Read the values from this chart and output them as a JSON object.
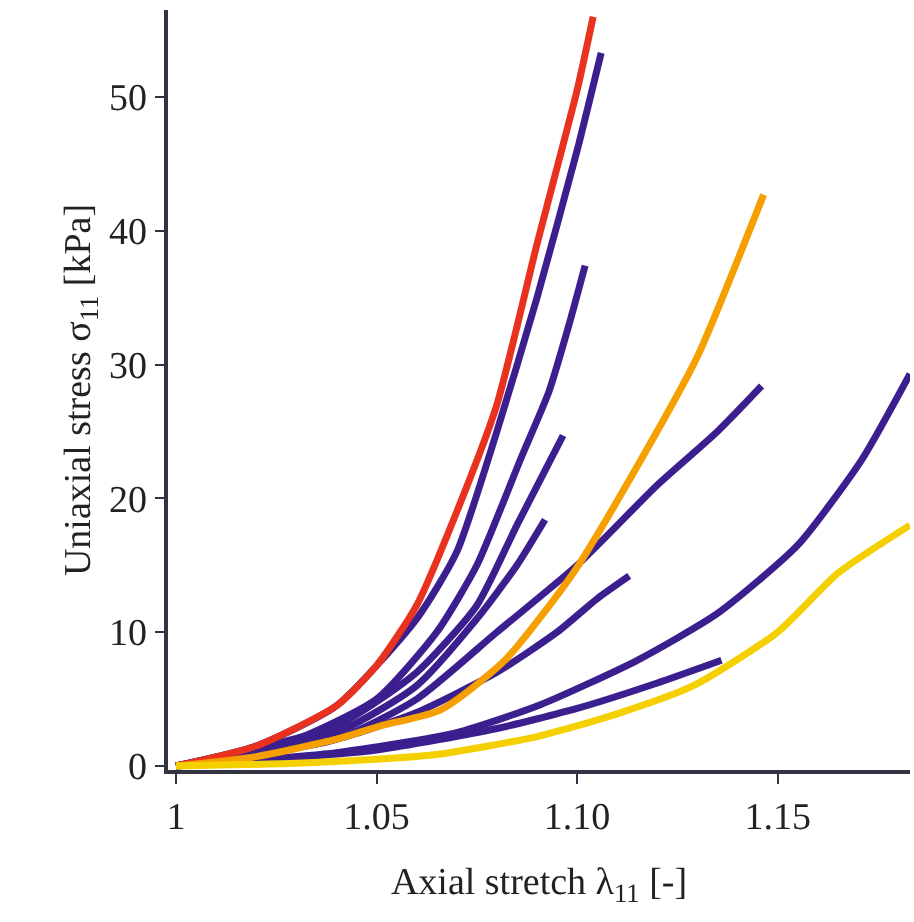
{
  "chart_data": {
    "type": "line",
    "xlabel": "Axial stretch λ$_{11}$ [-]",
    "ylabel": "Uniaxial stress σ$_{11}$ [kPa]",
    "xlim": [
      0.998,
      1.183
    ],
    "ylim": [
      -0.3,
      56.5
    ],
    "xticks": [
      1,
      1.05,
      {
        "value": 1.1,
        "label": "1.10"
      },
      1.15
    ],
    "yticks": [
      0,
      10,
      20,
      30,
      40,
      50
    ],
    "marker": "none",
    "line_style": "solid",
    "series": [
      {
        "color": "#3b1f8f",
        "x": [
          1.0,
          1.02,
          1.04,
          1.06,
          1.07,
          1.08,
          1.09,
          1.1,
          1.106
        ],
        "values": [
          0,
          1.5,
          4.5,
          11,
          16,
          25,
          35,
          46,
          53.3
        ]
      },
      {
        "color": "#3b1f8f",
        "x": [
          1.0,
          1.03,
          1.05,
          1.065,
          1.075,
          1.086,
          1.093,
          1.098,
          1.102
        ],
        "values": [
          0,
          2,
          5,
          10,
          15,
          23,
          28,
          33,
          37.4
        ]
      },
      {
        "color": "#3b1f8f",
        "x": [
          1.0,
          1.04,
          1.06,
          1.075,
          1.085,
          1.0965
        ],
        "values": [
          0,
          3,
          7,
          12,
          18,
          24.7
        ]
      },
      {
        "color": "#3b1f8f",
        "x": [
          1.0,
          1.04,
          1.06,
          1.08,
          1.1,
          1.12,
          1.135,
          1.146
        ],
        "values": [
          0,
          2,
          5,
          10,
          15,
          21,
          25,
          28.4
        ]
      },
      {
        "color": "#3b1f8f",
        "x": [
          1.0,
          1.04,
          1.07,
          1.091,
          1.115,
          1.135,
          1.155,
          1.171,
          1.183
        ],
        "values": [
          0,
          1,
          2.5,
          4.6,
          7.9,
          11.4,
          16.5,
          22.9,
          29.3
        ]
      },
      {
        "color": "#3b1f8f",
        "x": [
          1.0,
          1.05,
          1.08,
          1.1,
          1.12,
          1.136
        ],
        "values": [
          0,
          1.2,
          2.8,
          4.3,
          6.2,
          7.9
        ]
      },
      {
        "color": "#3b1f8f",
        "x": [
          1.0,
          1.04,
          1.06,
          1.08,
          1.095,
          1.105,
          1.113
        ],
        "values": [
          0,
          2,
          4,
          7,
          10,
          12.5,
          14.2
        ]
      },
      {
        "color": "#3b1f8f",
        "x": [
          1.0,
          1.04,
          1.06,
          1.075,
          1.085,
          1.092
        ],
        "values": [
          0,
          2.5,
          6,
          11,
          15,
          18.4
        ]
      },
      {
        "color": "#e8321e",
        "x": [
          1.0,
          1.02,
          1.04,
          1.05,
          1.06,
          1.07,
          1.08,
          1.09,
          1.1,
          1.104
        ],
        "values": [
          0,
          1.5,
          4.5,
          7.5,
          12,
          19,
          27,
          39,
          50.5,
          56
        ]
      },
      {
        "color": "#f5a000",
        "x": [
          1.0,
          1.02,
          1.04,
          1.051,
          1.066,
          1.082,
          1.099,
          1.115,
          1.13,
          1.1465
        ],
        "values": [
          0,
          0.7,
          2.0,
          3.0,
          4.2,
          7.9,
          14.4,
          22.4,
          30.6,
          42.7
        ]
      },
      {
        "color": "#f5d000",
        "x": [
          1.0,
          1.03,
          1.05,
          1.066,
          1.09,
          1.11,
          1.129,
          1.15,
          1.165,
          1.183
        ],
        "values": [
          0,
          0.2,
          0.5,
          0.9,
          2.2,
          3.9,
          6.0,
          10,
          14.4,
          18
        ]
      }
    ]
  }
}
